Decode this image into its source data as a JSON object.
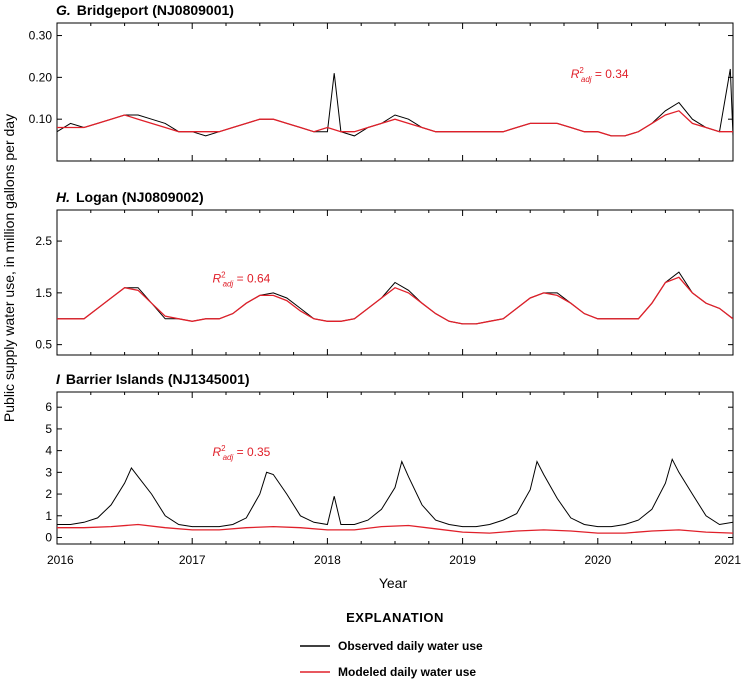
{
  "figure": {
    "xlabel": "Year",
    "ylabel": "Public supply water use, in million gallons per day",
    "x_ticks": [
      "2016",
      "2017",
      "2018",
      "2019",
      "2020",
      "2021"
    ],
    "legend_title": "EXPLANATION",
    "colors": {
      "observed": "#000000",
      "modeled": "#e0202a"
    }
  },
  "chart_data": [
    {
      "type": "line",
      "panel_letter": "G.",
      "panel_name": "Bridgeport (NJ0809001)",
      "xlim": [
        2016,
        2021
      ],
      "ylim": [
        0,
        0.33
      ],
      "y_ticks": [
        "0.10",
        "0.20",
        "0.30"
      ],
      "y_tick_values": [
        0.1,
        0.2,
        0.3
      ],
      "r2_base": "R",
      "r2_sup": "2",
      "r2_sub": "adj",
      "r2_value": " = 0.34",
      "series": [
        {
          "name": "Observed daily water use",
          "x": [
            2016.0,
            2016.1,
            2016.2,
            2016.3,
            2016.4,
            2016.5,
            2016.6,
            2016.7,
            2016.8,
            2016.9,
            2017.0,
            2017.1,
            2017.2,
            2017.3,
            2017.4,
            2017.5,
            2017.6,
            2017.7,
            2017.8,
            2017.9,
            2018.0,
            2018.05,
            2018.1,
            2018.2,
            2018.3,
            2018.4,
            2018.5,
            2018.6,
            2018.7,
            2018.8,
            2018.9,
            2019.0,
            2019.1,
            2019.2,
            2019.3,
            2019.4,
            2019.5,
            2019.6,
            2019.7,
            2019.8,
            2019.9,
            2020.0,
            2020.1,
            2020.2,
            2020.3,
            2020.4,
            2020.5,
            2020.6,
            2020.7,
            2020.8,
            2020.9,
            2020.98,
            2021.0
          ],
          "y": [
            0.07,
            0.09,
            0.08,
            0.09,
            0.1,
            0.11,
            0.11,
            0.1,
            0.09,
            0.07,
            0.07,
            0.06,
            0.07,
            0.08,
            0.09,
            0.1,
            0.1,
            0.09,
            0.08,
            0.07,
            0.07,
            0.21,
            0.07,
            0.06,
            0.08,
            0.09,
            0.11,
            0.1,
            0.08,
            0.07,
            0.07,
            0.07,
            0.07,
            0.07,
            0.07,
            0.08,
            0.09,
            0.09,
            0.09,
            0.08,
            0.07,
            0.07,
            0.06,
            0.06,
            0.07,
            0.09,
            0.12,
            0.14,
            0.1,
            0.08,
            0.07,
            0.22,
            0.06
          ]
        },
        {
          "name": "Modeled daily water use",
          "x": [
            2016.0,
            2016.1,
            2016.2,
            2016.3,
            2016.4,
            2016.5,
            2016.6,
            2016.7,
            2016.8,
            2016.9,
            2017.0,
            2017.1,
            2017.2,
            2017.3,
            2017.4,
            2017.5,
            2017.6,
            2017.7,
            2017.8,
            2017.9,
            2018.0,
            2018.1,
            2018.2,
            2018.3,
            2018.4,
            2018.5,
            2018.6,
            2018.7,
            2018.8,
            2018.9,
            2019.0,
            2019.1,
            2019.2,
            2019.3,
            2019.4,
            2019.5,
            2019.6,
            2019.7,
            2019.8,
            2019.9,
            2020.0,
            2020.1,
            2020.2,
            2020.3,
            2020.4,
            2020.5,
            2020.6,
            2020.7,
            2020.8,
            2020.9,
            2021.0
          ],
          "y": [
            0.08,
            0.08,
            0.08,
            0.09,
            0.1,
            0.11,
            0.1,
            0.09,
            0.08,
            0.07,
            0.07,
            0.07,
            0.07,
            0.08,
            0.09,
            0.1,
            0.1,
            0.09,
            0.08,
            0.07,
            0.08,
            0.07,
            0.07,
            0.08,
            0.09,
            0.1,
            0.09,
            0.08,
            0.07,
            0.07,
            0.07,
            0.07,
            0.07,
            0.07,
            0.08,
            0.09,
            0.09,
            0.09,
            0.08,
            0.07,
            0.07,
            0.06,
            0.06,
            0.07,
            0.09,
            0.11,
            0.12,
            0.09,
            0.08,
            0.07,
            0.07
          ]
        }
      ]
    },
    {
      "type": "line",
      "panel_letter": "H.",
      "panel_name": "Logan (NJ0809002)",
      "xlim": [
        2016,
        2021
      ],
      "ylim": [
        0.3,
        3.1
      ],
      "y_ticks": [
        "0.5",
        "1.5",
        "2.5"
      ],
      "y_tick_values": [
        0.5,
        1.5,
        2.5
      ],
      "r2_base": "R",
      "r2_sup": "2",
      "r2_sub": "adj",
      "r2_value": " = 0.64",
      "series": [
        {
          "name": "Observed daily water use",
          "x": [
            2016.0,
            2016.1,
            2016.2,
            2016.3,
            2016.4,
            2016.5,
            2016.6,
            2016.7,
            2016.8,
            2016.9,
            2017.0,
            2017.1,
            2017.2,
            2017.3,
            2017.4,
            2017.5,
            2017.6,
            2017.7,
            2017.8,
            2017.9,
            2018.0,
            2018.1,
            2018.2,
            2018.3,
            2018.4,
            2018.5,
            2018.6,
            2018.7,
            2018.8,
            2018.9,
            2019.0,
            2019.1,
            2019.2,
            2019.3,
            2019.4,
            2019.5,
            2019.6,
            2019.7,
            2019.8,
            2019.9,
            2020.0,
            2020.1,
            2020.2,
            2020.3,
            2020.4,
            2020.5,
            2020.6,
            2020.7,
            2020.8,
            2020.9,
            2021.0
          ],
          "y": [
            1.0,
            1.0,
            1.0,
            1.2,
            1.4,
            1.6,
            1.6,
            1.3,
            1.0,
            1.0,
            0.95,
            1.0,
            1.0,
            1.1,
            1.3,
            1.45,
            1.5,
            1.4,
            1.2,
            1.0,
            0.95,
            0.95,
            1.0,
            1.2,
            1.4,
            1.7,
            1.55,
            1.3,
            1.1,
            0.95,
            0.9,
            0.9,
            0.95,
            1.0,
            1.2,
            1.4,
            1.5,
            1.5,
            1.3,
            1.1,
            1.0,
            1.0,
            1.0,
            1.0,
            1.3,
            1.7,
            1.9,
            1.5,
            1.3,
            1.2,
            1.0
          ]
        },
        {
          "name": "Modeled daily water use",
          "x": [
            2016.0,
            2016.1,
            2016.2,
            2016.3,
            2016.4,
            2016.5,
            2016.6,
            2016.7,
            2016.8,
            2016.9,
            2017.0,
            2017.1,
            2017.2,
            2017.3,
            2017.4,
            2017.5,
            2017.6,
            2017.7,
            2017.8,
            2017.9,
            2018.0,
            2018.1,
            2018.2,
            2018.3,
            2018.4,
            2018.5,
            2018.6,
            2018.7,
            2018.8,
            2018.9,
            2019.0,
            2019.1,
            2019.2,
            2019.3,
            2019.4,
            2019.5,
            2019.6,
            2019.7,
            2019.8,
            2019.9,
            2020.0,
            2020.1,
            2020.2,
            2020.3,
            2020.4,
            2020.5,
            2020.6,
            2020.7,
            2020.8,
            2020.9,
            2021.0
          ],
          "y": [
            1.0,
            1.0,
            1.0,
            1.2,
            1.4,
            1.6,
            1.55,
            1.3,
            1.05,
            1.0,
            0.95,
            1.0,
            1.0,
            1.1,
            1.3,
            1.45,
            1.45,
            1.35,
            1.15,
            1.0,
            0.95,
            0.95,
            1.0,
            1.2,
            1.4,
            1.6,
            1.5,
            1.3,
            1.1,
            0.95,
            0.9,
            0.9,
            0.95,
            1.0,
            1.2,
            1.4,
            1.5,
            1.45,
            1.3,
            1.1,
            1.0,
            1.0,
            1.0,
            1.0,
            1.3,
            1.7,
            1.8,
            1.5,
            1.3,
            1.2,
            1.0
          ]
        }
      ]
    },
    {
      "type": "line",
      "panel_letter": "I",
      "panel_name": "Barrier Islands (NJ1345001)",
      "xlim": [
        2016,
        2021
      ],
      "ylim": [
        -0.3,
        6.7
      ],
      "y_ticks": [
        "0",
        "1",
        "2",
        "3",
        "4",
        "5",
        "6"
      ],
      "y_tick_values": [
        0,
        1,
        2,
        3,
        4,
        5,
        6
      ],
      "r2_base": "R",
      "r2_sup": "2",
      "r2_sub": "adj",
      "r2_value": " = 0.35",
      "series": [
        {
          "name": "Observed daily water use",
          "x": [
            2016.0,
            2016.1,
            2016.2,
            2016.3,
            2016.4,
            2016.5,
            2016.55,
            2016.6,
            2016.7,
            2016.8,
            2016.9,
            2017.0,
            2017.1,
            2017.2,
            2017.3,
            2017.4,
            2017.5,
            2017.55,
            2017.6,
            2017.7,
            2017.8,
            2017.9,
            2018.0,
            2018.05,
            2018.1,
            2018.2,
            2018.3,
            2018.4,
            2018.5,
            2018.55,
            2018.6,
            2018.7,
            2018.8,
            2018.9,
            2019.0,
            2019.1,
            2019.2,
            2019.3,
            2019.4,
            2019.5,
            2019.55,
            2019.6,
            2019.7,
            2019.8,
            2019.9,
            2020.0,
            2020.1,
            2020.2,
            2020.3,
            2020.4,
            2020.5,
            2020.55,
            2020.6,
            2020.7,
            2020.8,
            2020.9,
            2021.0
          ],
          "y": [
            0.6,
            0.6,
            0.7,
            0.9,
            1.5,
            2.5,
            3.2,
            2.8,
            2.0,
            1.0,
            0.6,
            0.5,
            0.5,
            0.5,
            0.6,
            0.9,
            2.0,
            3.0,
            2.9,
            2.0,
            1.0,
            0.7,
            0.6,
            1.9,
            0.6,
            0.6,
            0.8,
            1.3,
            2.3,
            3.5,
            2.8,
            1.5,
            0.8,
            0.6,
            0.5,
            0.5,
            0.6,
            0.8,
            1.1,
            2.2,
            3.5,
            2.9,
            1.8,
            0.9,
            0.6,
            0.5,
            0.5,
            0.6,
            0.8,
            1.3,
            2.5,
            3.6,
            3.0,
            2.0,
            1.0,
            0.6,
            0.7
          ]
        },
        {
          "name": "Modeled daily water use",
          "x": [
            2016.0,
            2016.2,
            2016.4,
            2016.6,
            2016.8,
            2017.0,
            2017.2,
            2017.4,
            2017.6,
            2017.8,
            2018.0,
            2018.2,
            2018.4,
            2018.6,
            2018.8,
            2019.0,
            2019.2,
            2019.4,
            2019.6,
            2019.8,
            2020.0,
            2020.2,
            2020.4,
            2020.6,
            2020.8,
            2021.0
          ],
          "y": [
            0.45,
            0.45,
            0.5,
            0.6,
            0.45,
            0.35,
            0.35,
            0.45,
            0.5,
            0.45,
            0.35,
            0.35,
            0.5,
            0.55,
            0.4,
            0.25,
            0.2,
            0.3,
            0.35,
            0.3,
            0.2,
            0.2,
            0.3,
            0.35,
            0.25,
            0.2
          ]
        }
      ]
    }
  ]
}
